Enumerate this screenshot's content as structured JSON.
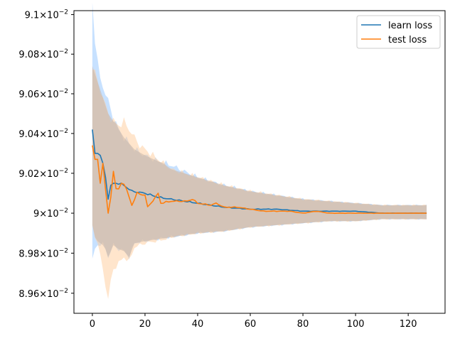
{
  "chart_data": {
    "type": "line",
    "title": "",
    "xlabel": "",
    "ylabel": "",
    "x_range": [
      -7,
      134
    ],
    "y_range": [
      0.0895,
      0.09102
    ],
    "yscale": "log",
    "grid": false,
    "legend_placement": "top-right",
    "x_ticks": [
      {
        "value": 0,
        "label": "0"
      },
      {
        "value": 20,
        "label": "20"
      },
      {
        "value": 40,
        "label": "40"
      },
      {
        "value": 60,
        "label": "60"
      },
      {
        "value": 80,
        "label": "80"
      },
      {
        "value": 100,
        "label": "100"
      },
      {
        "value": 120,
        "label": "120"
      }
    ],
    "y_ticks": [
      {
        "value": 0.0896,
        "mant": "8.96",
        "exp": "−2"
      },
      {
        "value": 0.0898,
        "mant": "8.98",
        "exp": "−2"
      },
      {
        "value": 0.09,
        "mant": "9",
        "exp": "−2"
      },
      {
        "value": 0.0902,
        "mant": "9.02",
        "exp": "−2"
      },
      {
        "value": 0.0904,
        "mant": "9.04",
        "exp": "−2"
      },
      {
        "value": 0.0906,
        "mant": "9.06",
        "exp": "−2"
      },
      {
        "value": 0.0908,
        "mant": "9.08",
        "exp": "−2"
      },
      {
        "value": 0.091,
        "mant": "9.1",
        "exp": "−2"
      }
    ],
    "tick_base": "10",
    "series": [
      {
        "name": "learn loss",
        "color": "#1f77b4",
        "band_color": "#99c9ff",
        "key_points": [
          [
            0,
            0.09042
          ],
          [
            1,
            0.0903
          ],
          [
            2,
            0.0903
          ],
          [
            3,
            0.09029
          ],
          [
            4,
            0.09025
          ],
          [
            5,
            0.09018
          ],
          [
            6,
            0.09007
          ],
          [
            7,
            0.09014
          ],
          [
            8,
            0.09015
          ],
          [
            9,
            0.09015
          ],
          [
            10,
            0.09015
          ],
          [
            12,
            0.09014
          ],
          [
            15,
            0.09011
          ],
          [
            20,
            0.0901
          ],
          [
            25,
            0.09008
          ],
          [
            30,
            0.09007
          ],
          [
            35,
            0.09006
          ],
          [
            40,
            0.09005
          ],
          [
            50,
            0.09003
          ],
          [
            60,
            0.09002
          ],
          [
            70,
            0.09002
          ],
          [
            80,
            0.09001
          ],
          [
            90,
            0.09001
          ],
          [
            100,
            0.09001
          ],
          [
            110,
            0.09
          ],
          [
            120,
            0.09
          ],
          [
            127,
            0.09
          ]
        ],
        "band_key_points": [
          [
            0,
            0.08976,
            0.09106
          ],
          [
            1,
            0.08982,
            0.09088
          ],
          [
            2,
            0.08984,
            0.09075
          ],
          [
            3,
            0.08985,
            0.09068
          ],
          [
            4,
            0.08984,
            0.09064
          ],
          [
            5,
            0.08982,
            0.0906
          ],
          [
            6,
            0.08978,
            0.09056
          ],
          [
            8,
            0.08984,
            0.09048
          ],
          [
            10,
            0.08982,
            0.09042
          ],
          [
            12,
            0.08981,
            0.09038
          ],
          [
            14,
            0.08978,
            0.09035
          ],
          [
            16,
            0.08985,
            0.09032
          ],
          [
            20,
            0.08986,
            0.09029
          ],
          [
            25,
            0.08987,
            0.09026
          ],
          [
            30,
            0.08988,
            0.09024
          ],
          [
            35,
            0.08989,
            0.09021
          ],
          [
            40,
            0.0899,
            0.09018
          ],
          [
            50,
            0.08991,
            0.09014
          ],
          [
            60,
            0.08993,
            0.09011
          ],
          [
            70,
            0.08994,
            0.09009
          ],
          [
            80,
            0.08995,
            0.09007
          ],
          [
            90,
            0.08996,
            0.09006
          ],
          [
            100,
            0.08996,
            0.09005
          ],
          [
            110,
            0.08997,
            0.09004
          ],
          [
            120,
            0.08997,
            0.09004
          ],
          [
            127,
            0.08997,
            0.09004
          ]
        ]
      },
      {
        "name": "test loss",
        "color": "#ff7f0e",
        "band_color": "#ffcc99",
        "key_points": [
          [
            0,
            0.09034
          ],
          [
            1,
            0.09027
          ],
          [
            2,
            0.09027
          ],
          [
            3,
            0.09015
          ],
          [
            4,
            0.09025
          ],
          [
            5,
            0.09012
          ],
          [
            6,
            0.09
          ],
          [
            7,
            0.09008
          ],
          [
            8,
            0.09021
          ],
          [
            9,
            0.09012
          ],
          [
            10,
            0.09012
          ],
          [
            11,
            0.09015
          ],
          [
            12,
            0.09015
          ],
          [
            14,
            0.09008
          ],
          [
            15,
            0.09004
          ],
          [
            17,
            0.0901
          ],
          [
            20,
            0.09009
          ],
          [
            21,
            0.09003
          ],
          [
            24,
            0.09008
          ],
          [
            25,
            0.0901
          ],
          [
            26,
            0.09005
          ],
          [
            30,
            0.09006
          ],
          [
            33,
            0.09006
          ],
          [
            36,
            0.09006
          ],
          [
            38,
            0.09007
          ],
          [
            40,
            0.09005
          ],
          [
            45,
            0.09004
          ],
          [
            47,
            0.09005
          ],
          [
            50,
            0.09003
          ],
          [
            55,
            0.09003
          ],
          [
            60,
            0.09002
          ],
          [
            65,
            0.09001
          ],
          [
            70,
            0.09001
          ],
          [
            75,
            0.09001
          ],
          [
            80,
            0.09
          ],
          [
            85,
            0.09001
          ],
          [
            90,
            0.09
          ],
          [
            95,
            0.09
          ],
          [
            100,
            0.09
          ],
          [
            105,
            0.09
          ],
          [
            110,
            0.09
          ],
          [
            115,
            0.09
          ],
          [
            120,
            0.09
          ],
          [
            127,
            0.09
          ]
        ],
        "band_key_points": [
          [
            0,
            0.08994,
            0.09074
          ],
          [
            1,
            0.08988,
            0.0907
          ],
          [
            2,
            0.08986,
            0.09066
          ],
          [
            3,
            0.08978,
            0.09062
          ],
          [
            4,
            0.08972,
            0.09058
          ],
          [
            5,
            0.08964,
            0.09054
          ],
          [
            6,
            0.08957,
            0.0905
          ],
          [
            7,
            0.08966,
            0.09048
          ],
          [
            8,
            0.08972,
            0.09046
          ],
          [
            10,
            0.08975,
            0.09044
          ],
          [
            12,
            0.08978,
            0.09046
          ],
          [
            14,
            0.08976,
            0.09042
          ],
          [
            16,
            0.08983,
            0.09038
          ],
          [
            18,
            0.08984,
            0.09034
          ],
          [
            20,
            0.08985,
            0.09032
          ],
          [
            24,
            0.08986,
            0.09028
          ],
          [
            28,
            0.08987,
            0.09024
          ],
          [
            30,
            0.08988,
            0.09022
          ],
          [
            35,
            0.08989,
            0.0902
          ],
          [
            40,
            0.0899,
            0.09018
          ],
          [
            50,
            0.08991,
            0.09014
          ],
          [
            60,
            0.08993,
            0.09011
          ],
          [
            70,
            0.08994,
            0.09009
          ],
          [
            80,
            0.08995,
            0.09007
          ],
          [
            90,
            0.08996,
            0.09006
          ],
          [
            100,
            0.08996,
            0.09005
          ],
          [
            110,
            0.08997,
            0.09004
          ],
          [
            120,
            0.08997,
            0.09004
          ],
          [
            127,
            0.08997,
            0.09004
          ]
        ]
      }
    ]
  }
}
